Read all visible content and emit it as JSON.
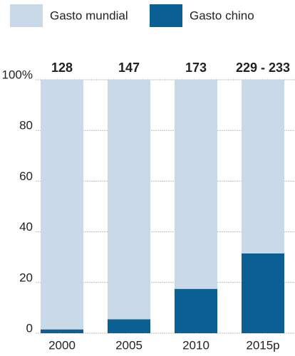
{
  "chart_data": {
    "type": "stacked_bar_100",
    "categories": [
      "2000",
      "2005",
      "2010",
      "2015p"
    ],
    "series": [
      {
        "name": "Gasto mundial",
        "color": "#c9d9e8",
        "values": [
          98.5,
          94.5,
          82.5,
          68.5
        ]
      },
      {
        "name": "Gasto chino",
        "color": "#0a5f93",
        "values": [
          1.5,
          5.5,
          17.5,
          31.5
        ]
      }
    ],
    "bar_labels": [
      128,
      147,
      173,
      "229 - 233"
    ],
    "ylim": [
      0,
      100
    ],
    "yticks": [
      0,
      20,
      40,
      60,
      80,
      {
        "value": 100,
        "label": "100%"
      }
    ],
    "grid": true
  }
}
